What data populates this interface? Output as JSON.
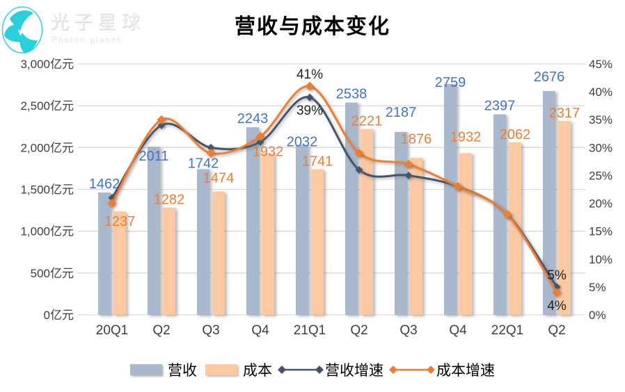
{
  "logo": {
    "brand_cn": "光子星球",
    "brand_en": "Photon planet",
    "accent_color": "#3bd2dd"
  },
  "title": "营收与成本变化",
  "chart_data": {
    "type": "bar+line",
    "title": "营收与成本变化",
    "categories": [
      "20Q1",
      "Q2",
      "Q3",
      "Q4",
      "21Q1",
      "Q2",
      "Q3",
      "Q4",
      "22Q1",
      "Q2"
    ],
    "series": [
      {
        "name": "营收",
        "type": "bar",
        "axis": "left",
        "color": "#a9b8cc",
        "values": [
          1462,
          2011,
          1742,
          2243,
          2032,
          2538,
          2187,
          2759,
          2397,
          2676
        ]
      },
      {
        "name": "成本",
        "type": "bar",
        "axis": "left",
        "color": "#fcc9a3",
        "values": [
          1237,
          1282,
          1474,
          1932,
          1741,
          2221,
          1876,
          1932,
          2062,
          2317
        ]
      },
      {
        "name": "营收增速",
        "type": "line",
        "axis": "right",
        "color": "#44546a",
        "values_percent": [
          21,
          34,
          30,
          31,
          39,
          26,
          25,
          23,
          18,
          5
        ]
      },
      {
        "name": "成本增速",
        "type": "line",
        "axis": "right",
        "color": "#ed7d31",
        "values_percent": [
          20,
          35,
          29,
          32,
          41,
          29,
          27,
          23,
          18,
          4
        ]
      }
    ],
    "left_axis": {
      "min": 0,
      "max": 3000,
      "tick_step": 500,
      "unit": "亿元",
      "tick_labels": [
        "0亿元",
        "500亿元",
        "1,000亿元",
        "1,500亿元",
        "2,000亿元",
        "2,500亿元",
        "3,000亿元"
      ]
    },
    "right_axis": {
      "min": 0,
      "max": 45,
      "tick_step": 5,
      "unit": "%",
      "tick_labels": [
        "0%",
        "5%",
        "10%",
        "15%",
        "20%",
        "25%",
        "30%",
        "35%",
        "40%",
        "45%"
      ]
    },
    "line_point_labels": [
      {
        "series": "成本增速",
        "category_index": 4,
        "text": "41%",
        "position": "above"
      },
      {
        "series": "营收增速",
        "category_index": 4,
        "text": "39%",
        "position": "below"
      },
      {
        "series": "营收增速",
        "category_index": 9,
        "text": "5%",
        "position": "above"
      },
      {
        "series": "成本增速",
        "category_index": 9,
        "text": "4%",
        "position": "below"
      }
    ],
    "label_colors": {
      "营收": "#4472c4",
      "成本": "#ed7d31"
    },
    "grid": true,
    "legend_position": "bottom",
    "layout_hints": {
      "bar_label_dy": [
        [
          0,
          26,
          4,
          0,
          8,
          0,
          -16,
          10,
          0,
          -8
        ],
        [
          26,
          0,
          -8,
          9,
          0,
          0,
          -16,
          -12,
          0,
          0
        ]
      ]
    }
  }
}
